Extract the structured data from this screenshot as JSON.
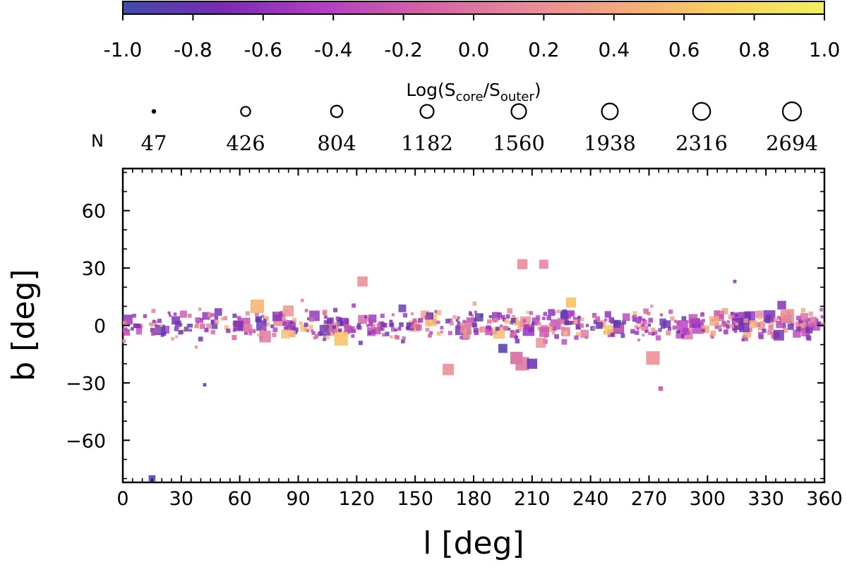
{
  "chart_data": {
    "type": "scatter",
    "xlabel": "l [deg]",
    "ylabel": "b [deg]",
    "xlim": [
      0,
      360
    ],
    "ylim": [
      -82,
      82
    ],
    "x_ticks": [
      0,
      30,
      60,
      90,
      120,
      150,
      180,
      210,
      240,
      270,
      300,
      330,
      360
    ],
    "y_ticks": [
      -60,
      -30,
      0,
      30,
      60
    ],
    "grid": false,
    "marker": "square",
    "colorbar": {
      "label": "Log(S_core/S_outer)",
      "label_main": "Log(S",
      "label_sub1": "core",
      "label_mid": "/S",
      "label_sub2": "outer",
      "label_end": ")",
      "range": [
        -1.0,
        1.0
      ],
      "colormap": "plasma",
      "tick_labels": [
        "-1.0",
        "-0.8",
        "-0.6",
        "-0.4",
        "-0.2",
        "0.0",
        "0.2",
        "0.4",
        "0.6",
        "0.8",
        "1.0"
      ],
      "colors": [
        "#414cab",
        "#7a2ab4",
        "#b43fc4",
        "#d462a6",
        "#e9889b",
        "#f4a97a",
        "#fbd25c",
        "#f2f05f"
      ]
    },
    "size_legend": {
      "title": "N",
      "values": [
        "47",
        "426",
        "804",
        "1182",
        "1560",
        "1938",
        "2316",
        "2694"
      ]
    },
    "notable_points": [
      {
        "l": 15,
        "b": -80,
        "size": 6,
        "logratio": -0.9
      },
      {
        "l": 123,
        "b": 23,
        "size": 9,
        "logratio": 0.2
      },
      {
        "l": 205,
        "b": 32,
        "size": 9,
        "logratio": 0.15
      },
      {
        "l": 216,
        "b": 32,
        "size": 8,
        "logratio": 0.1
      },
      {
        "l": 167,
        "b": -23,
        "size": 10,
        "logratio": 0.2
      },
      {
        "l": 195,
        "b": -12,
        "size": 8,
        "logratio": -0.9
      },
      {
        "l": 202,
        "b": -17,
        "size": 11,
        "logratio": -0.1
      },
      {
        "l": 205,
        "b": -20,
        "size": 12,
        "logratio": 0.0
      },
      {
        "l": 210,
        "b": -20,
        "size": 9,
        "logratio": -0.8
      },
      {
        "l": 272,
        "b": -17,
        "size": 12,
        "logratio": 0.2
      },
      {
        "l": 276,
        "b": -33,
        "size": 4,
        "logratio": -0.3
      },
      {
        "l": 42,
        "b": -31,
        "size": 3,
        "logratio": -0.9
      },
      {
        "l": 314,
        "b": 23,
        "size": 3,
        "logratio": -0.6
      },
      {
        "l": 341,
        "b": 5,
        "size": 12,
        "logratio": 0.2
      },
      {
        "l": 112,
        "b": -7,
        "size": 12,
        "logratio": 0.6
      },
      {
        "l": 69,
        "b": 10,
        "size": 12,
        "logratio": 0.5
      },
      {
        "l": 230,
        "b": 12,
        "size": 9,
        "logratio": 0.6
      }
    ]
  }
}
